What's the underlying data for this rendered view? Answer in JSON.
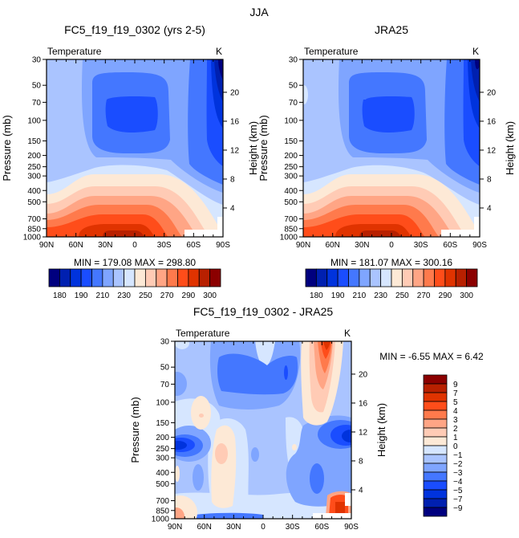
{
  "suptitle": "JJA",
  "chart_data": [
    {
      "type": "contour",
      "title": "FC5_f19_f19_0302 (yrs 2-5)",
      "variable": "Temperature",
      "units": "K",
      "ylabel": "Pressure (mb)",
      "ylabel_right": "Height (km)",
      "x_ticks": [
        "90N",
        "60N",
        "30N",
        "0",
        "30S",
        "60S",
        "90S"
      ],
      "y_ticks": [
        "30",
        "50",
        "70",
        "100",
        "150",
        "200",
        "250",
        "300",
        "400",
        "500",
        "700",
        "850",
        "1000"
      ],
      "y_right_ticks": [
        "20",
        "16",
        "12",
        "8",
        "4"
      ],
      "stats": "MIN = 179.08   MAX = 298.80",
      "min": 179.08,
      "max": 298.8,
      "colorbar_labels": [
        "180",
        "190",
        "210",
        "230",
        "250",
        "270",
        "290",
        "300"
      ],
      "colorbar_colors": [
        "#00007f",
        "#0020b0",
        "#0033dd",
        "#1a4dff",
        "#4477ff",
        "#7fa5ff",
        "#aac4ff",
        "#d6e6ff",
        "#fde9d6",
        "#ffcbb5",
        "#ffa585",
        "#ff7a4c",
        "#ff4d1a",
        "#e03300",
        "#b82000",
        "#8b0000"
      ]
    },
    {
      "type": "contour",
      "title": "JRA25",
      "variable": "Temperature",
      "units": "K",
      "ylabel": "Pressure (mb)",
      "ylabel_right": "Height (km)",
      "x_ticks": [
        "90N",
        "60N",
        "30N",
        "0",
        "30S",
        "60S",
        "90S"
      ],
      "y_ticks": [
        "30",
        "50",
        "70",
        "100",
        "150",
        "200",
        "250",
        "300",
        "400",
        "500",
        "700",
        "850",
        "1000"
      ],
      "y_right_ticks": [
        "20",
        "16",
        "12",
        "8",
        "4"
      ],
      "stats": "MIN = 181.07   MAX = 300.16",
      "min": 181.07,
      "max": 300.16,
      "colorbar_labels": [
        "180",
        "190",
        "210",
        "230",
        "250",
        "270",
        "290",
        "300"
      ],
      "colorbar_colors": [
        "#00007f",
        "#0020b0",
        "#0033dd",
        "#1a4dff",
        "#4477ff",
        "#7fa5ff",
        "#aac4ff",
        "#d6e6ff",
        "#fde9d6",
        "#ffcbb5",
        "#ffa585",
        "#ff7a4c",
        "#ff4d1a",
        "#e03300",
        "#b82000",
        "#8b0000"
      ]
    },
    {
      "type": "contour",
      "title": "FC5_f19_f19_0302 - JRA25",
      "variable": "Temperature",
      "units": "K",
      "ylabel": "Pressure (mb)",
      "ylabel_right": "Height (km)",
      "x_ticks": [
        "90N",
        "60N",
        "30N",
        "0",
        "30S",
        "60S",
        "90S"
      ],
      "y_ticks": [
        "30",
        "50",
        "70",
        "100",
        "150",
        "200",
        "250",
        "300",
        "400",
        "500",
        "700",
        "850",
        "1000"
      ],
      "y_right_ticks": [
        "20",
        "16",
        "12",
        "8",
        "4"
      ],
      "stats": "MIN =   -6.55   MAX =    6.42",
      "min": -6.55,
      "max": 6.42,
      "colorbar_labels": [
        "9",
        "7",
        "5",
        "4",
        "3",
        "2",
        "1",
        "0",
        "−1",
        "−2",
        "−3",
        "−4",
        "−5",
        "−7",
        "−9"
      ],
      "colorbar_colors": [
        "#8b0000",
        "#b82000",
        "#e03300",
        "#ff4d1a",
        "#ff7a4c",
        "#ffa585",
        "#ffcbb5",
        "#fde9d6",
        "#d6e6ff",
        "#aac4ff",
        "#7fa5ff",
        "#4477ff",
        "#1a4dff",
        "#0033dd",
        "#0020b0",
        "#00007f"
      ]
    }
  ]
}
